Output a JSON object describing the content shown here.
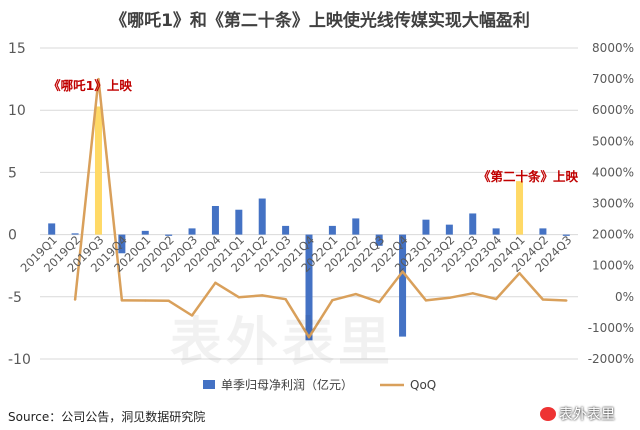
{
  "title": "《哪吒1》和《第二十条》上映使光线传媒实现大幅盈利",
  "source": "Source：公司公告，洞见数据研究院",
  "watermark": "表外表里",
  "weibo": "表外表里",
  "colors": {
    "bar": "#4472C4",
    "highlight": "#FFD966",
    "line": "#D9A05B",
    "annotation": "#C00000",
    "grid": "#D9D9D9",
    "tick": "#595959"
  },
  "chart_data": {
    "type": "bar+line",
    "categories": [
      "2019Q1",
      "2019Q2",
      "2019Q3",
      "2019Q4",
      "2020Q1",
      "2020Q2",
      "2020Q3",
      "2020Q4",
      "2021Q1",
      "2021Q2",
      "2021Q3",
      "2021Q4",
      "2022Q1",
      "2022Q2",
      "2022Q3",
      "2022Q4",
      "2023Q1",
      "2023Q2",
      "2023Q3",
      "2023Q4",
      "2024Q1",
      "2024Q2",
      "2024Q3"
    ],
    "category_labels": [
      "2019Q1",
      "2019Q2",
      "2019Q3",
      "2019Q4",
      "2020Q1",
      "2020Q2",
      "2020Q3",
      "2020Q4",
      "2021Q1",
      "2021Q2",
      "2021Q3",
      "2021Q4",
      "2022Q1",
      "2022Q2",
      "2022Q3",
      "2022Q4",
      "2023Q1",
      "2023Q2",
      "2023Q3",
      "2023Q4",
      "2024Q1",
      "2024Q2",
      "2024Q3"
    ],
    "series": [
      {
        "name": "单季归母净利润（亿元）",
        "axis": "left",
        "values": [
          0.9,
          0.1,
          10.3,
          -1.5,
          0.3,
          -0.1,
          0.5,
          2.3,
          2.0,
          2.9,
          0.7,
          -8.5,
          0.7,
          1.3,
          -0.9,
          -8.2,
          1.2,
          0.8,
          1.7,
          0.5,
          4.3,
          0.5,
          -0.1
        ],
        "highlight": [
          2,
          20
        ]
      },
      {
        "name": "QoQ",
        "axis": "right",
        "type": "line",
        "values": [
          null,
          -90,
          7000,
          -115,
          -120,
          -130,
          -600,
          450,
          -13,
          45,
          -76,
          -1300,
          -108,
          86,
          -169,
          811,
          -115,
          -33,
          113,
          -71,
          760,
          -88,
          -120
        ]
      }
    ],
    "left_axis": {
      "min": -10,
      "max": 15,
      "ticks": [
        -10,
        -5,
        0,
        5,
        10,
        15
      ],
      "tick_labels": [
        "-10",
        "-5",
        "0",
        "5",
        "10",
        "15"
      ]
    },
    "right_axis": {
      "min": -2000,
      "max": 8000,
      "ticks": [
        -2000,
        -1000,
        0,
        1000,
        2000,
        3000,
        4000,
        5000,
        6000,
        7000,
        8000
      ],
      "tick_labels": [
        "-2000%",
        "-1000%",
        "0%",
        "1000%",
        "2000%",
        "3000%",
        "4000%",
        "5000%",
        "6000%",
        "7000%",
        "8000%"
      ]
    },
    "annotations": [
      {
        "text": "《哪吒1》上映",
        "category": "2019Q3"
      },
      {
        "text": "《第二十条》上映",
        "category": "2024Q1"
      }
    ],
    "legend": {
      "position": "bottom",
      "entries": [
        "单季归母净利润（亿元）",
        "QoQ"
      ]
    },
    "grid": true
  }
}
